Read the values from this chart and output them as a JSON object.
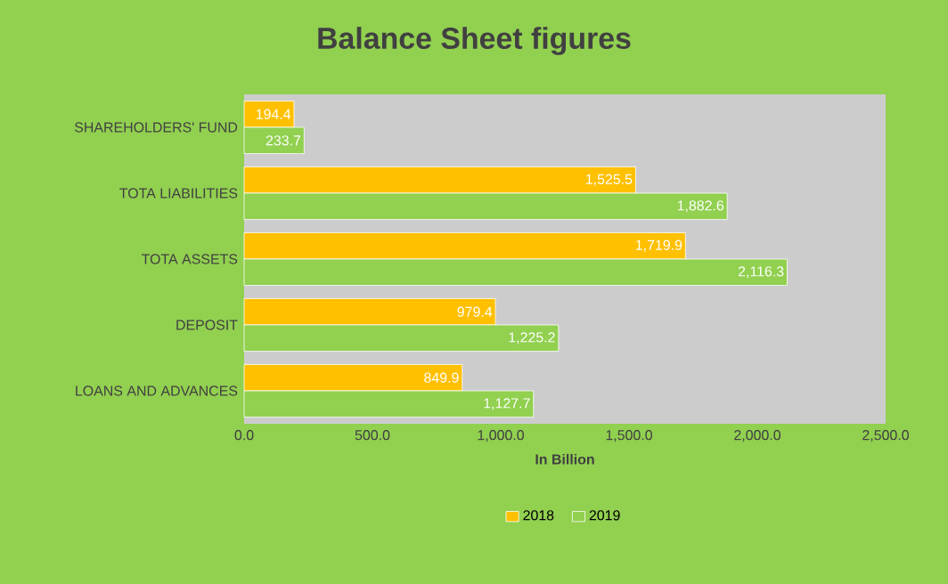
{
  "chart_data": {
    "type": "bar",
    "orientation": "horizontal",
    "title": "Balance Sheet figures",
    "xlabel": "In Billion",
    "categories": [
      "SHAREHOLDERS' FUND",
      "TOTA LIABILITIES",
      "TOTA ASSETS",
      "DEPOSIT",
      "LOANS AND ADVANCES"
    ],
    "series": [
      {
        "name": "2018",
        "color": "#ffc000",
        "values": [
          194.4,
          1525.5,
          1719.9,
          979.4,
          849.9
        ],
        "value_labels": [
          "194.4",
          "1,525.5",
          "1,719.9",
          "979.4",
          "849.9"
        ]
      },
      {
        "name": "2019",
        "color": "#92d050",
        "values": [
          233.7,
          1882.6,
          2116.3,
          1225.2,
          1127.7
        ],
        "value_labels": [
          "233.7",
          "1,882.6",
          "2,116.3",
          "1,225.2",
          "1,127.7"
        ]
      }
    ],
    "xlim": [
      0,
      2500
    ],
    "xticks": [
      {
        "value": 0,
        "label": "0.0"
      },
      {
        "value": 500,
        "label": "500.0"
      },
      {
        "value": 1000,
        "label": "1,000.0"
      },
      {
        "value": 1500,
        "label": "1,500.0"
      },
      {
        "value": 2000,
        "label": "2,000.0"
      },
      {
        "value": 2500,
        "label": "2,500.0"
      }
    ],
    "grid": false,
    "legend": "bottom"
  }
}
